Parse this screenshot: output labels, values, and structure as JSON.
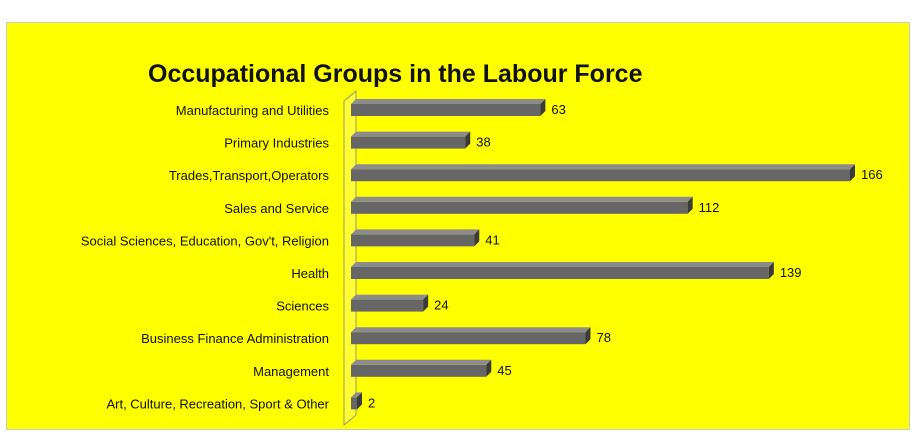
{
  "chart_data": {
    "type": "bar",
    "orientation": "horizontal",
    "title": "Occupational Groups in the Labour Force",
    "xlabel": "",
    "ylabel": "",
    "categories": [
      "Manufacturing and Utilities",
      "Primary Industries",
      "Trades,Transport,Operators",
      "Sales and Service",
      "Social Sciences, Education, Gov't, Religion",
      "Health",
      "Sciences",
      "Business Finance Administration",
      "Management",
      "Art, Culture, Recreation, Sport & Other"
    ],
    "values": [
      63,
      38,
      166,
      112,
      41,
      139,
      24,
      78,
      45,
      2
    ],
    "xlim": [
      0,
      166
    ],
    "grid": false,
    "legend": "none",
    "data_labels": true,
    "colors": {
      "background": "#ffff00",
      "bar_face": "#666666",
      "bar_top": "#8c8c8c",
      "bar_end": "#3a3a3a",
      "text": "#111111"
    }
  }
}
